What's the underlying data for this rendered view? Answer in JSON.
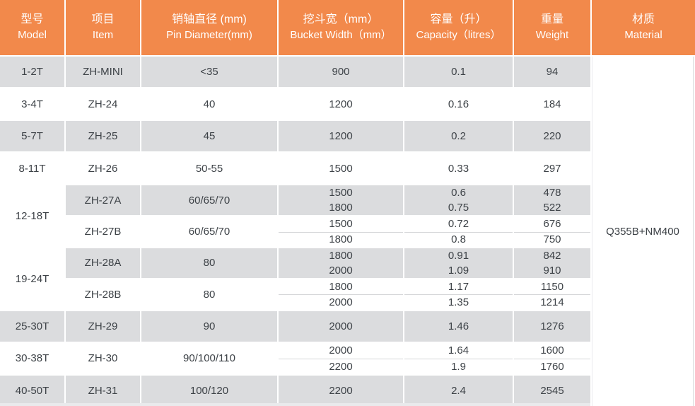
{
  "colors": {
    "header_bg": "#F2894B",
    "header_text": "#FFFFFF",
    "row_alt_bg": "#DBDCDE",
    "row_bg": "#FFFFFF",
    "body_text": "#3D4247",
    "sub_divider": "#D5D6D8",
    "grid_gap": "#FFFFFF"
  },
  "table": {
    "columns": [
      {
        "key": "model",
        "zh": "型号",
        "en": "Model"
      },
      {
        "key": "item",
        "zh": "项目",
        "en": "Item"
      },
      {
        "key": "pin",
        "zh": "销轴直径 (mm)",
        "en": "Pin Diameter(mm)"
      },
      {
        "key": "bucket",
        "zh": "挖斗宽（mm）",
        "en": "Bucket Width（mm）"
      },
      {
        "key": "capacity",
        "zh": "容量（升）",
        "en": "Capacity（litres）"
      },
      {
        "key": "weight",
        "zh": "重量",
        "en": "Weight"
      },
      {
        "key": "material",
        "zh": "材质",
        "en": "Material"
      }
    ],
    "material_value": "Q355B+NM400",
    "groups": [
      {
        "model": "1-2T",
        "items": [
          {
            "item": "ZH-MINI",
            "pin": "<35",
            "shade": "gray",
            "specs": [
              {
                "bucket": "900",
                "capacity": "0.1",
                "weight": "94"
              }
            ]
          }
        ]
      },
      {
        "model": "3-4T",
        "items": [
          {
            "item": "ZH-24",
            "pin": "40",
            "shade": "white",
            "specs": [
              {
                "bucket": "1200",
                "capacity": "0.16",
                "weight": "184"
              }
            ]
          }
        ]
      },
      {
        "model": "5-7T",
        "items": [
          {
            "item": "ZH-25",
            "pin": "45",
            "shade": "gray",
            "specs": [
              {
                "bucket": "1200",
                "capacity": "0.2",
                "weight": "220"
              }
            ]
          }
        ]
      },
      {
        "model": "8-11T",
        "items": [
          {
            "item": "ZH-26",
            "pin": "50-55",
            "shade": "white",
            "specs": [
              {
                "bucket": "1500",
                "capacity": "0.33",
                "weight": "297"
              }
            ]
          }
        ]
      },
      {
        "model": "12-18T",
        "items": [
          {
            "item": "ZH-27A",
            "pin": "60/65/70",
            "shade": "gray",
            "specs": [
              {
                "bucket": "1500",
                "capacity": "0.6",
                "weight": "478"
              },
              {
                "bucket": "1800",
                "capacity": "0.75",
                "weight": "522"
              }
            ]
          },
          {
            "item": "ZH-27B",
            "pin": "60/65/70",
            "shade": "white",
            "specs": [
              {
                "bucket": "1500",
                "capacity": "0.72",
                "weight": "676"
              },
              {
                "bucket": "1800",
                "capacity": "0.8",
                "weight": "750"
              }
            ]
          }
        ]
      },
      {
        "model": "19-24T",
        "items": [
          {
            "item": "ZH-28A",
            "pin": "80",
            "shade": "gray",
            "specs": [
              {
                "bucket": "1800",
                "capacity": "0.91",
                "weight": "842"
              },
              {
                "bucket": "2000",
                "capacity": "1.09",
                "weight": "910"
              }
            ]
          },
          {
            "item": "ZH-28B",
            "pin": "80",
            "shade": "white",
            "specs": [
              {
                "bucket": "1800",
                "capacity": "1.17",
                "weight": "1150"
              },
              {
                "bucket": "2000",
                "capacity": "1.35",
                "weight": "1214"
              }
            ]
          }
        ]
      },
      {
        "model": "25-30T",
        "items": [
          {
            "item": "ZH-29",
            "pin": "90",
            "shade": "gray",
            "specs": [
              {
                "bucket": "2000",
                "capacity": "1.46",
                "weight": "1276"
              }
            ]
          }
        ]
      },
      {
        "model": "30-38T",
        "items": [
          {
            "item": "ZH-30",
            "pin": "90/100/110",
            "shade": "white",
            "specs": [
              {
                "bucket": "2000",
                "capacity": "1.64",
                "weight": "1600"
              },
              {
                "bucket": "2200",
                "capacity": "1.9",
                "weight": "1760"
              }
            ]
          }
        ]
      },
      {
        "model": "40-50T",
        "items": [
          {
            "item": "ZH-31",
            "pin": "100/120",
            "shade": "gray",
            "specs": [
              {
                "bucket": "2200",
                "capacity": "2.4",
                "weight": "2545"
              }
            ]
          }
        ]
      }
    ]
  },
  "chart_data": {
    "type": "table",
    "title": "",
    "legend_position": "none",
    "columns_zh": [
      "型号",
      "项目",
      "销轴直径 (mm)",
      "挖斗宽（mm）",
      "容量（升）",
      "重量",
      "材质"
    ],
    "columns_en": [
      "Model",
      "Item",
      "Pin Diameter(mm)",
      "Bucket Width（mm）",
      "Capacity（litres）",
      "Weight",
      "Material"
    ],
    "merged_material_value": "Q355B+NM400",
    "rows": [
      [
        "1-2T",
        "ZH-MINI",
        "<35",
        "900",
        "0.1",
        "94",
        "Q355B+NM400"
      ],
      [
        "3-4T",
        "ZH-24",
        "40",
        "1200",
        "0.16",
        "184",
        ""
      ],
      [
        "5-7T",
        "ZH-25",
        "45",
        "1200",
        "0.2",
        "220",
        ""
      ],
      [
        "8-11T",
        "ZH-26",
        "50-55",
        "1500",
        "0.33",
        "297",
        ""
      ],
      [
        "12-18T",
        "ZH-27A",
        "60/65/70",
        "1500",
        "0.6",
        "478",
        ""
      ],
      [
        "",
        "",
        "",
        "1800",
        "0.75",
        "522",
        ""
      ],
      [
        "",
        "ZH-27B",
        "60/65/70",
        "1500",
        "0.72",
        "676",
        ""
      ],
      [
        "",
        "",
        "",
        "1800",
        "0.8",
        "750",
        ""
      ],
      [
        "19-24T",
        "ZH-28A",
        "80",
        "1800",
        "0.91",
        "842",
        ""
      ],
      [
        "",
        "",
        "",
        "2000",
        "1.09",
        "910",
        ""
      ],
      [
        "",
        "ZH-28B",
        "80",
        "1800",
        "1.17",
        "1150",
        ""
      ],
      [
        "",
        "",
        "",
        "2000",
        "1.35",
        "1214",
        ""
      ],
      [
        "25-30T",
        "ZH-29",
        "90",
        "2000",
        "1.46",
        "1276",
        ""
      ],
      [
        "30-38T",
        "ZH-30",
        "90/100/110",
        "2000",
        "1.64",
        "1600",
        ""
      ],
      [
        "",
        "",
        "",
        "2200",
        "1.9",
        "1760",
        ""
      ],
      [
        "40-50T",
        "ZH-31",
        "100/120",
        "2200",
        "2.4",
        "2545",
        ""
      ]
    ]
  }
}
